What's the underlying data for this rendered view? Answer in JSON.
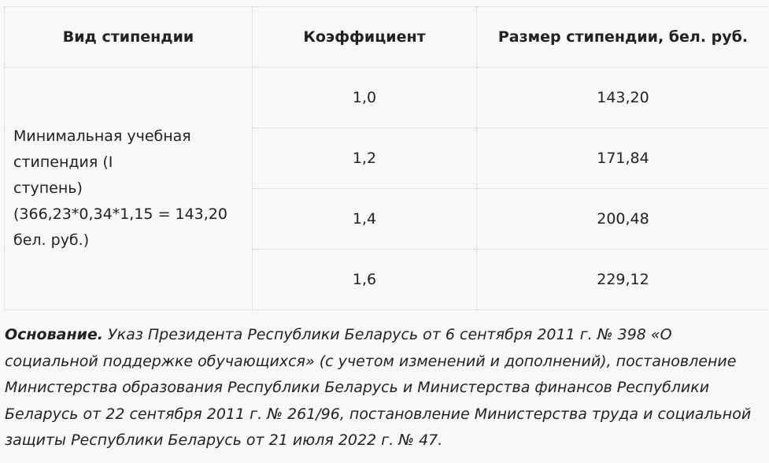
{
  "table": {
    "headers": {
      "type": "Вид стипендии",
      "coef": "Коэффициент",
      "amount": "Размер стипендии, бел. руб."
    },
    "type_lines": [
      "Минимальная учебная",
      "стипендия (I",
      "ступень)",
      "(366,23*0,34*1,15 = 143,20",
      "бел. руб.)"
    ],
    "rows": [
      {
        "coef": "1,0",
        "amount": "143,20"
      },
      {
        "coef": "1,2",
        "amount": "171,84"
      },
      {
        "coef": "1,4",
        "amount": "200,48"
      },
      {
        "coef": "1,6",
        "amount": "229,12"
      }
    ]
  },
  "basis": {
    "label": "Основание.",
    "text": " Указ Президента Республики Беларусь от 6 сентября 2011 г. № 398 «О социальной поддержке обучающихся» (с учетом изменений и дополнений), постановление Министерства образования Республики Беларусь и Министерства финансов Республики Беларусь от 22 сентября 2011 г. № 261/96, постановление Министерства труда и социальной защиты Республики Беларусь от 21 июля 2022 г. № 47."
  }
}
